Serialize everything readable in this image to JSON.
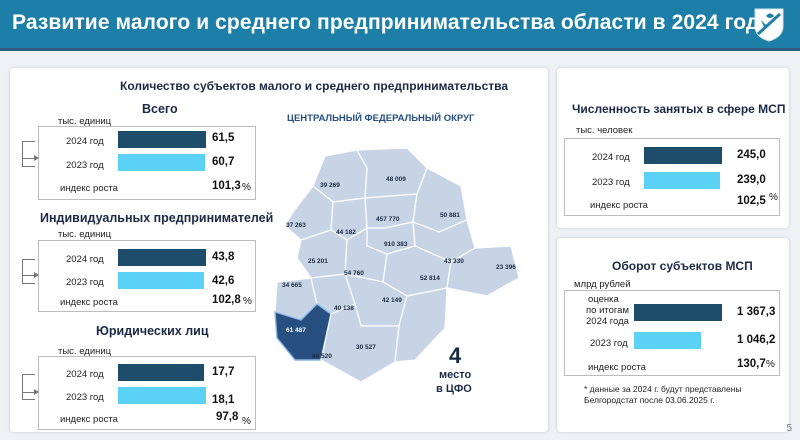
{
  "header": {
    "title": "Развитие малого и среднего предпринимательства области в 2024 году"
  },
  "left_panel": {
    "title": "Количество субъектов малого и среднего предпринимательства",
    "unit": "тыс. единиц",
    "blocks": [
      {
        "heading": "Всего",
        "unit": "тыс. единиц",
        "row1_label": "2024 год",
        "row1_value": "61,5",
        "row1_fraction": 1.0,
        "row2_label": "2023 год",
        "row2_value": "60,7",
        "row2_fraction": 0.987,
        "growth_label": "индекс роста",
        "growth_value": "101,3",
        "growth_sign": "%"
      },
      {
        "heading": "Индивидуальных предпринимателей",
        "unit": "тыс. единиц",
        "row1_label": "2024 год",
        "row1_value": "43,8",
        "row1_fraction": 1.0,
        "row2_label": "2023 год",
        "row2_value": "42,6",
        "row2_fraction": 0.973,
        "growth_label": "индекс роста",
        "growth_value": "102,8",
        "growth_sign": "%"
      },
      {
        "heading": "Юридических лиц",
        "unit": "тыс. единиц",
        "row1_label": "2024 год",
        "row1_value": "17,7",
        "row1_fraction": 0.978,
        "row2_label": "2023 год",
        "row2_value": "18,1",
        "row2_fraction": 1.0,
        "growth_label": "индекс роста",
        "growth_value": "97,8",
        "growth_sign": "%"
      }
    ]
  },
  "map": {
    "title": "ЦЕНТРАЛЬНЫЙ ФЕДЕРАЛЬНЫЙ ОКРУГ",
    "regions": [
      "39 269",
      "48 009",
      "37 263",
      "44 182",
      "457 770",
      "50 881",
      "910 383",
      "43 330",
      "25 201",
      "54 760",
      "52 814",
      "23 396",
      "34 665",
      "40 138",
      "42 149",
      "61 487",
      "88 520",
      "30 527"
    ],
    "highlight_color": "#274f80",
    "region_color": "#c7d4e6",
    "place_number": "4",
    "place_text_1": "место",
    "place_text_2": "в ЦФО"
  },
  "employment": {
    "title": "Численность занятых в сфере МСП",
    "unit": "тыс. человек",
    "row1_label": "2024 год",
    "row1_value": "245,0",
    "row1_fraction": 1.0,
    "row2_label": "2023 год",
    "row2_value": "239,0",
    "row2_fraction": 0.976,
    "growth_label": "индекс роста",
    "growth_value": "102,5",
    "growth_sign": "%"
  },
  "turnover": {
    "title": "Оборот субъектов МСП",
    "unit": "млрд рублей",
    "row1_label_1": "оценка",
    "row1_label_2": "по итогам",
    "row1_label_3": "2024 года",
    "row1_value": "1 367,3",
    "row1_fraction": 1.0,
    "row2_label": "2023 год",
    "row2_value": "1 046,2",
    "row2_fraction": 0.765,
    "growth_label": "индекс роста",
    "growth_value": "130,7",
    "growth_sign": "%"
  },
  "footnote": {
    "line1": "* данные за 2024 г. будут представлены",
    "line2": "Белгородстат после 03.06.2025 г."
  },
  "colors": {
    "header": "#1d7fa8",
    "bar_2024": "#1e4d6b",
    "bar_2023": "#5ad1f5"
  },
  "page_number": "5"
}
